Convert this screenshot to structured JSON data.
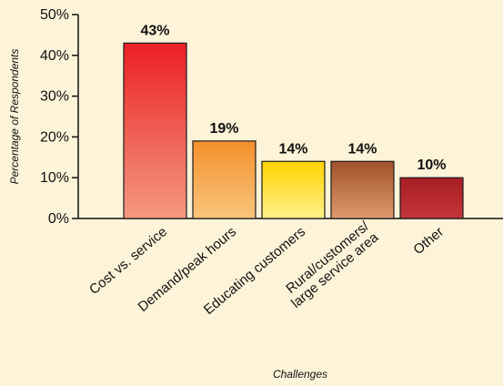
{
  "chart_data": {
    "type": "bar",
    "categories": [
      "Cost vs. service",
      "Demand/peak hours",
      "Educating customers",
      "Rural/customers/ large service area",
      "Other"
    ],
    "category_lines": [
      [
        "Cost vs. service"
      ],
      [
        "Demand/peak hours"
      ],
      [
        "Educating customers"
      ],
      [
        "Rural/customers/",
        "large service area"
      ],
      [
        "Other"
      ]
    ],
    "values": [
      43,
      19,
      14,
      14,
      10
    ],
    "data_labels": [
      "43%",
      "19%",
      "14%",
      "14%",
      "10%"
    ],
    "bar_gradients": [
      [
        "#ec1f24",
        "#f49a80"
      ],
      [
        "#f4902c",
        "#f9c57c"
      ],
      [
        "#ffd200",
        "#fff08a"
      ],
      [
        "#a2522c",
        "#df9a6e"
      ],
      [
        "#a91d24",
        "#c2353b"
      ]
    ],
    "xlabel": "Challenges",
    "ylabel": "Percentage of Respondents",
    "ylim": [
      0,
      50
    ],
    "yticks": [
      0,
      10,
      20,
      30,
      40,
      50
    ],
    "ytick_labels": [
      "0%",
      "10%",
      "20%",
      "30%",
      "40%",
      "50%"
    ],
    "grid": false,
    "legend": "none",
    "background_color": "#fdf3d8",
    "axis_color": "#111111"
  }
}
